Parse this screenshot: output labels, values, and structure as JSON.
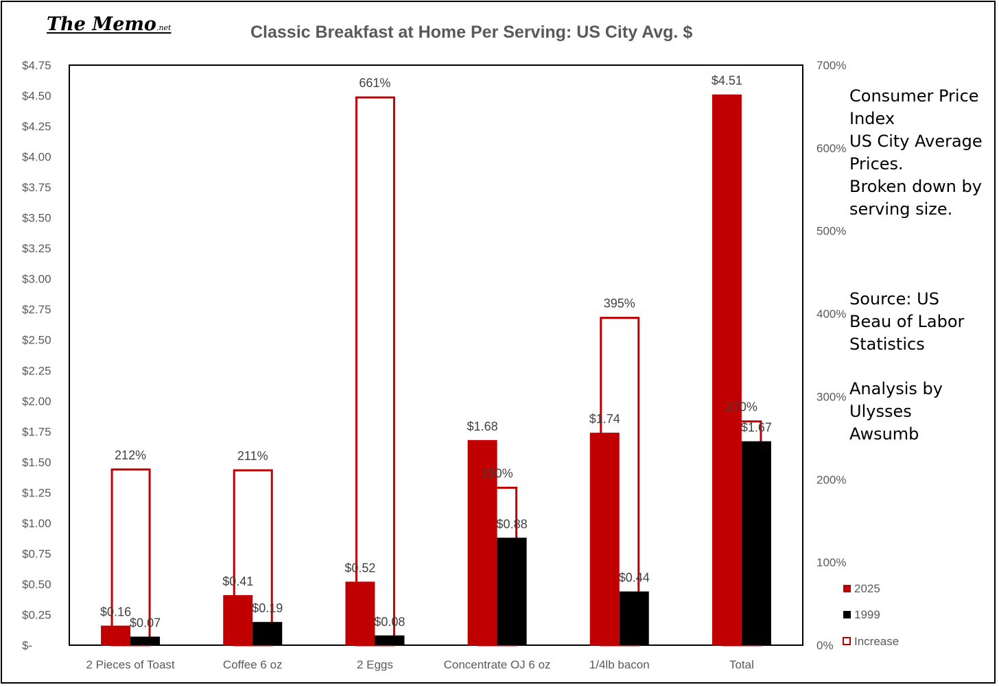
{
  "logo": {
    "main": "The Memo",
    "suffix": ".net"
  },
  "chart_data": {
    "type": "bar",
    "title": "Classic Breakfast at Home Per Serving: US City Avg. $",
    "categories": [
      "2 Pieces of Toast",
      "Coffee 6 oz",
      "2 Eggs",
      "Concentrate OJ 6 oz",
      "1/4lb bacon",
      "Total"
    ],
    "series": [
      {
        "name": "2025",
        "axis": "left",
        "color": "#c00000",
        "fill": "solid",
        "values": [
          0.16,
          0.41,
          0.52,
          1.68,
          1.74,
          4.51
        ],
        "labels": [
          "$0.16",
          "$0.41",
          "$0.52",
          "$1.68",
          "$1.74",
          "$4.51"
        ]
      },
      {
        "name": "1999",
        "axis": "left",
        "color": "#000000",
        "fill": "solid",
        "values": [
          0.07,
          0.19,
          0.08,
          0.88,
          0.44,
          1.67
        ],
        "labels": [
          "$0.07",
          "$0.19",
          "$0.08",
          "$0.88",
          "$0.44",
          "$1.67"
        ]
      },
      {
        "name": "Increase",
        "axis": "right",
        "color": "#c00000",
        "fill": "outline",
        "values": [
          212,
          211,
          661,
          190,
          395,
          270
        ],
        "labels": [
          "212%",
          "211%",
          "661%",
          "190%",
          "395%",
          "270%"
        ]
      }
    ],
    "left_axis": {
      "ylim": [
        0,
        4.75
      ],
      "ticks": [
        "$-",
        "$0.25",
        "$0.50",
        "$0.75",
        "$1.00",
        "$1.25",
        "$1.50",
        "$1.75",
        "$2.00",
        "$2.25",
        "$2.50",
        "$2.75",
        "$3.00",
        "$3.25",
        "$3.50",
        "$3.75",
        "$4.00",
        "$4.25",
        "$4.50",
        "$4.75"
      ]
    },
    "right_axis": {
      "ylim": [
        0,
        700
      ],
      "ticks": [
        "0%",
        "100%",
        "200%",
        "300%",
        "400%",
        "500%",
        "600%",
        "700%"
      ]
    },
    "legend": {
      "placement": "right",
      "entries": [
        "2025",
        "1999",
        "Increase"
      ]
    },
    "grid": false
  },
  "notes": {
    "description": [
      "Consumer Price",
      "Index",
      "US City Average",
      "Prices.",
      "Broken down by",
      "serving size."
    ],
    "source": [
      "Source: US",
      "Beau of Labor",
      "Statistics"
    ],
    "analysis": [
      "Analysis by",
      "Ulysses",
      "Awsumb"
    ]
  },
  "colors": {
    "red": "#c00000",
    "black": "#000000",
    "title": "#595959",
    "axis_text": "#595959"
  }
}
